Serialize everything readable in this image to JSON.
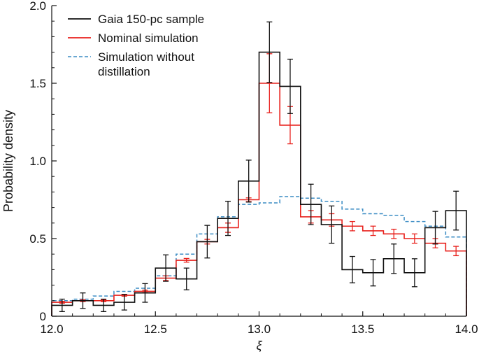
{
  "chart_data": {
    "type": "histogram",
    "xlabel": "ξ",
    "ylabel": "Probability density",
    "xlim": [
      12.0,
      14.0
    ],
    "ylim": [
      0.0,
      2.0
    ],
    "bin_edges": [
      12.0,
      12.1,
      12.2,
      12.3,
      12.4,
      12.5,
      12.6,
      12.7,
      12.8,
      12.9,
      13.0,
      13.1,
      13.2,
      13.3,
      13.4,
      13.5,
      13.6,
      13.7,
      13.8,
      13.9,
      14.0
    ],
    "x_ticks": [
      {
        "value": 12.0,
        "label": "12.0"
      },
      {
        "value": 12.5,
        "label": "12.5"
      },
      {
        "value": 13.0,
        "label": "13.0"
      },
      {
        "value": 13.5,
        "label": "13.5"
      },
      {
        "value": 14.0,
        "label": "14.0"
      }
    ],
    "y_ticks": [
      {
        "value": 0.0,
        "label": "0"
      },
      {
        "value": 0.5,
        "label": "0.5"
      },
      {
        "value": 1.0,
        "label": "1.0"
      },
      {
        "value": 1.5,
        "label": "1.5"
      },
      {
        "value": 2.0,
        "label": "2.0"
      }
    ],
    "legend_position": "top-left",
    "series": [
      {
        "name": "Simulation without distillation",
        "name_lines": [
          "Simulation without",
          "distillation"
        ],
        "style": "dashed",
        "color": "#3a8cc4",
        "values": [
          0.1,
          0.11,
          0.13,
          0.16,
          0.18,
          0.26,
          0.4,
          0.53,
          0.64,
          0.72,
          0.73,
          0.77,
          0.76,
          0.74,
          0.69,
          0.66,
          0.65,
          0.61,
          0.58,
          0.51
        ]
      },
      {
        "name": "Nominal simulation",
        "style": "solid",
        "color": "#e8211c",
        "values": [
          0.09,
          0.1,
          0.1,
          0.135,
          0.16,
          0.245,
          0.36,
          0.48,
          0.57,
          0.75,
          1.5,
          1.23,
          0.64,
          0.62,
          0.58,
          0.55,
          0.53,
          0.5,
          0.47,
          0.42
        ],
        "errors": [
          0.006,
          0.006,
          0.006,
          0.006,
          0.008,
          0.015,
          0.012,
          0.015,
          0.03,
          0.012,
          0.19,
          0.12,
          0.04,
          0.04,
          0.03,
          0.03,
          0.03,
          0.03,
          0.03,
          0.03
        ]
      },
      {
        "name": "Gaia 150-pc sample",
        "style": "solid",
        "color": "#111111",
        "values": [
          0.07,
          0.1,
          0.07,
          0.09,
          0.15,
          0.31,
          0.24,
          0.48,
          0.63,
          0.87,
          1.7,
          1.48,
          0.72,
          0.59,
          0.3,
          0.28,
          0.37,
          0.28,
          0.57,
          0.68
        ],
        "errors": [
          0.04,
          0.05,
          0.04,
          0.05,
          0.06,
          0.085,
          0.07,
          0.105,
          0.11,
          0.135,
          0.195,
          0.175,
          0.13,
          0.12,
          0.085,
          0.085,
          0.095,
          0.09,
          0.105,
          0.125
        ]
      }
    ]
  }
}
